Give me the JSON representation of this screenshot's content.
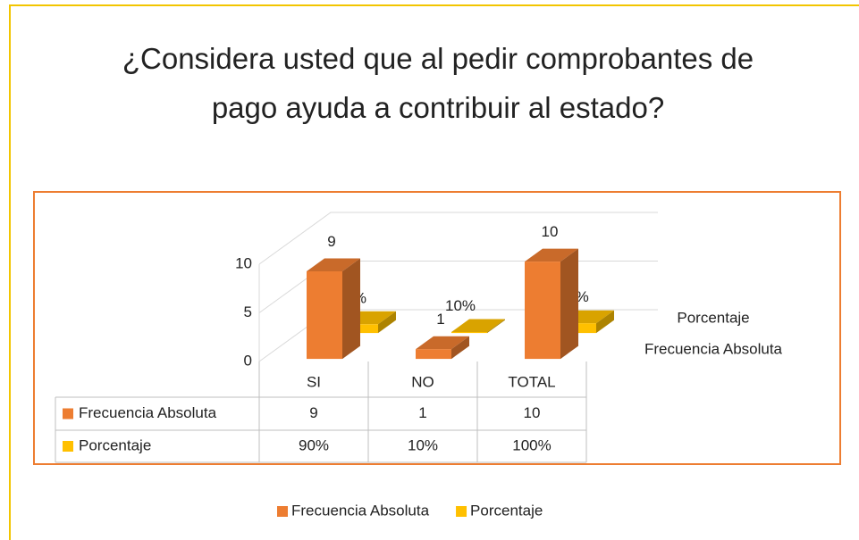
{
  "chart_data": {
    "type": "bar3d",
    "title": "¿Considera usted que al pedir comprobantes de pago ayuda a contribuir al estado?",
    "categories": [
      "SI",
      "NO",
      "TOTAL"
    ],
    "series": [
      {
        "name": "Frecuencia Absoluta",
        "color": "#ED7D31",
        "values": [
          9,
          1,
          10
        ]
      },
      {
        "name": "Porcentaje",
        "color": "#FFC000",
        "values": [
          0.9,
          0.1,
          1
        ],
        "value_labels": [
          "90%",
          "10%",
          "100%"
        ]
      }
    ],
    "ylim": [
      0,
      10
    ],
    "yticks": [
      0,
      5,
      10
    ],
    "grid": true,
    "data_table": true,
    "legend": "bottom"
  }
}
